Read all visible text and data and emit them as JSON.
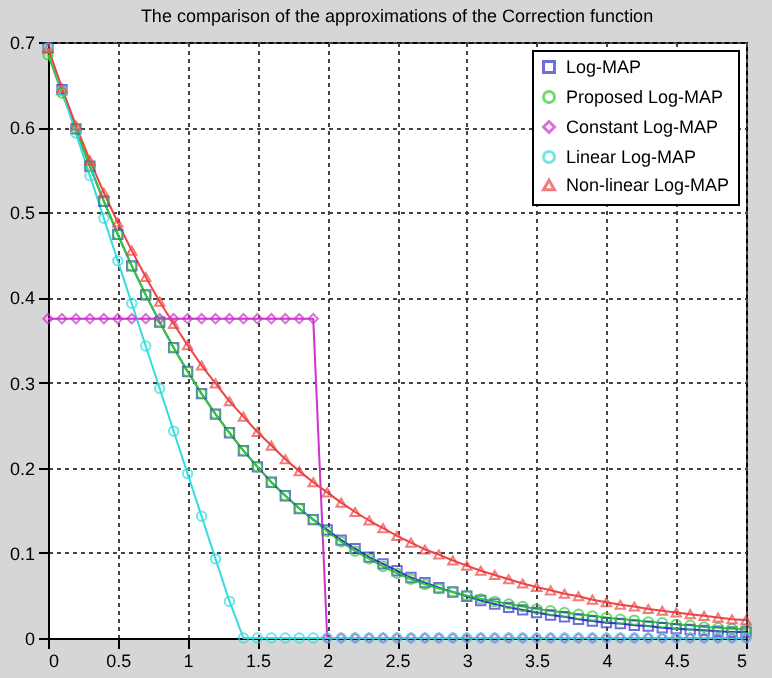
{
  "chart_data": {
    "type": "line",
    "title": "The comparison of the approximations of the Correction function",
    "x": [
      0,
      0.1,
      0.2,
      0.3,
      0.4,
      0.5,
      0.6,
      0.7,
      0.8,
      0.9,
      1.0,
      1.1,
      1.2,
      1.3,
      1.4,
      1.5,
      1.6,
      1.7,
      1.8,
      1.9,
      2.0,
      2.1,
      2.2,
      2.3,
      2.4,
      2.5,
      2.6,
      2.7,
      2.8,
      2.9,
      3.0,
      3.1,
      3.2,
      3.3,
      3.4,
      3.5,
      3.6,
      3.7,
      3.8,
      3.9,
      4.0,
      4.1,
      4.2,
      4.3,
      4.4,
      4.5,
      4.6,
      4.7,
      4.8,
      4.9,
      5.0
    ],
    "series": [
      {
        "name": "Log-MAP",
        "color": "#3333cc",
        "marker": "square",
        "values": [
          0.693,
          0.644,
          0.598,
          0.554,
          0.513,
          0.474,
          0.437,
          0.403,
          0.371,
          0.341,
          0.313,
          0.287,
          0.263,
          0.241,
          0.22,
          0.201,
          0.183,
          0.167,
          0.152,
          0.139,
          0.127,
          0.115,
          0.105,
          0.095,
          0.087,
          0.079,
          0.071,
          0.065,
          0.059,
          0.054,
          0.049,
          0.044,
          0.04,
          0.036,
          0.033,
          0.03,
          0.027,
          0.025,
          0.022,
          0.02,
          0.018,
          0.017,
          0.015,
          0.014,
          0.012,
          0.011,
          0.01,
          0.009,
          0.008,
          0.007,
          0.007
        ]
      },
      {
        "name": "Proposed Log-MAP",
        "color": "#33cc33",
        "marker": "circle",
        "values": [
          0.685,
          0.64,
          0.598,
          0.554,
          0.513,
          0.474,
          0.437,
          0.403,
          0.371,
          0.341,
          0.313,
          0.287,
          0.263,
          0.241,
          0.22,
          0.201,
          0.183,
          0.167,
          0.152,
          0.139,
          0.125,
          0.113,
          0.102,
          0.093,
          0.084,
          0.076,
          0.069,
          0.063,
          0.058,
          0.054,
          0.05,
          0.046,
          0.043,
          0.04,
          0.037,
          0.034,
          0.032,
          0.03,
          0.028,
          0.026,
          0.024,
          0.022,
          0.021,
          0.019,
          0.018,
          0.016,
          0.015,
          0.013,
          0.012,
          0.011,
          0.01
        ]
      },
      {
        "name": "Constant Log-MAP",
        "color": "#cc33cc",
        "marker": "diamond",
        "values": [
          0.375,
          0.375,
          0.375,
          0.375,
          0.375,
          0.375,
          0.375,
          0.375,
          0.375,
          0.375,
          0.375,
          0.375,
          0.375,
          0.375,
          0.375,
          0.375,
          0.375,
          0.375,
          0.375,
          0.375,
          0,
          0,
          0,
          0,
          0,
          0,
          0,
          0,
          0,
          0,
          0,
          0,
          0,
          0,
          0,
          0,
          0,
          0,
          0,
          0,
          0,
          0,
          0,
          0,
          0,
          0,
          0,
          0,
          0,
          0,
          0
        ]
      },
      {
        "name": "Linear Log-MAP",
        "color": "#33dddd",
        "marker": "circle",
        "values": [
          0.693,
          0.643,
          0.593,
          0.543,
          0.493,
          0.443,
          0.393,
          0.343,
          0.293,
          0.243,
          0.193,
          0.143,
          0.093,
          0.043,
          0,
          0,
          0,
          0,
          0,
          0,
          0,
          0,
          0,
          0,
          0,
          0,
          0,
          0,
          0,
          0,
          0,
          0,
          0,
          0,
          0,
          0,
          0,
          0,
          0,
          0,
          0,
          0,
          0,
          0,
          0,
          0,
          0,
          0,
          0,
          0,
          0
        ]
      },
      {
        "name": "Non-linear Log-MAP",
        "color": "#ee4444",
        "marker": "triangle",
        "values": [
          0.693,
          0.646,
          0.602,
          0.561,
          0.523,
          0.488,
          0.455,
          0.424,
          0.395,
          0.369,
          0.344,
          0.32,
          0.299,
          0.278,
          0.26,
          0.242,
          0.226,
          0.21,
          0.196,
          0.183,
          0.171,
          0.159,
          0.148,
          0.138,
          0.129,
          0.12,
          0.112,
          0.104,
          0.098,
          0.091,
          0.085,
          0.079,
          0.074,
          0.069,
          0.064,
          0.06,
          0.056,
          0.052,
          0.049,
          0.045,
          0.042,
          0.039,
          0.037,
          0.034,
          0.032,
          0.03,
          0.028,
          0.026,
          0.024,
          0.022,
          0.021
        ]
      }
    ],
    "xlim": [
      0,
      5
    ],
    "xticks": [
      0,
      0.5,
      1,
      1.5,
      2,
      2.5,
      3,
      3.5,
      4,
      4.5,
      5
    ],
    "ylim": [
      0,
      0.7
    ],
    "yticks": [
      0,
      0.1,
      0.2,
      0.3,
      0.4,
      0.5,
      0.6,
      0.7
    ],
    "grid": true,
    "legend": "top right",
    "line_style": "solid"
  }
}
